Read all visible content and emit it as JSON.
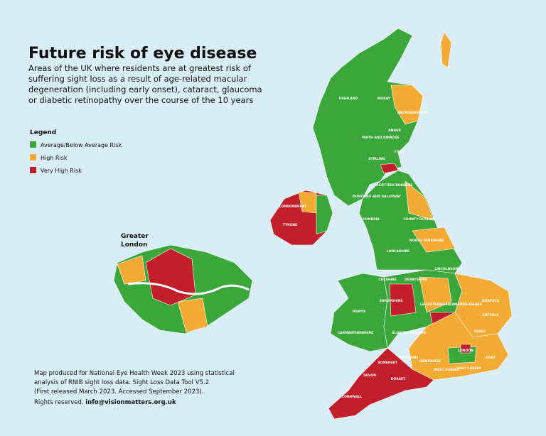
{
  "header": {
    "title": "Future risk of eye disease",
    "subtitle": [
      "Areas of the UK where residents are at greatest risk of",
      "suffering sight loss as a result of age-related macular",
      "degeneration (including early onset), cataract, glaucoma",
      "or diabetic retinopathy over the course of the 10 years"
    ]
  },
  "legend": {
    "title": "Legend",
    "items": [
      {
        "label": "Average/Below Average Risk",
        "color": "#3ba639"
      },
      {
        "label": "High Risk",
        "color": "#f4ab33"
      },
      {
        "label": "Very High Risk",
        "color": "#c21f2b"
      }
    ]
  },
  "inset": {
    "title": [
      "Greater",
      "London"
    ]
  },
  "map_labels": [
    "HIGHLAND",
    "MORAY",
    "ABERDEENSHIRE",
    "ANGUS",
    "PERTH AND KINROSS",
    "FIFE",
    "STIRLING",
    "SCOTTISH BORDERS",
    "DUMFRIES AND GALLOWAY",
    "CUMBRIA",
    "COUNTY DURHAM",
    "NORTH YORKSHIRE",
    "LANCASHIRE",
    "LINCOLNSHIRE",
    "NORFOLK",
    "SUFFOLK",
    "ESSEX",
    "KENT",
    "CORNWALL",
    "DEVON",
    "DORSET",
    "SOMERSET",
    "WILTSHIRE",
    "HAMPSHIRE",
    "WEST SUSSEX",
    "EAST SUSSEX",
    "POWYS",
    "CARMARTHENSHIRE",
    "SHROPSHIRE",
    "CHESHIRE",
    "DERBYSHIRE",
    "LEICESTERSHIRE",
    "CAMBRIDGESHIRE",
    "GLOUCESTERSHIRE",
    "LONDONDERRY",
    "TYRONE",
    "LONDON"
  ],
  "footer": {
    "lines": [
      "Map produced for National Eye Health Week 2023 using statistical",
      "analysis of RNIB sight loss data. Sight Loss Data Tool V5.2",
      "(First released March 2023. Accessed September 2023).",
      "Rights reserved."
    ],
    "email": "info@visionmatters.org.uk"
  }
}
